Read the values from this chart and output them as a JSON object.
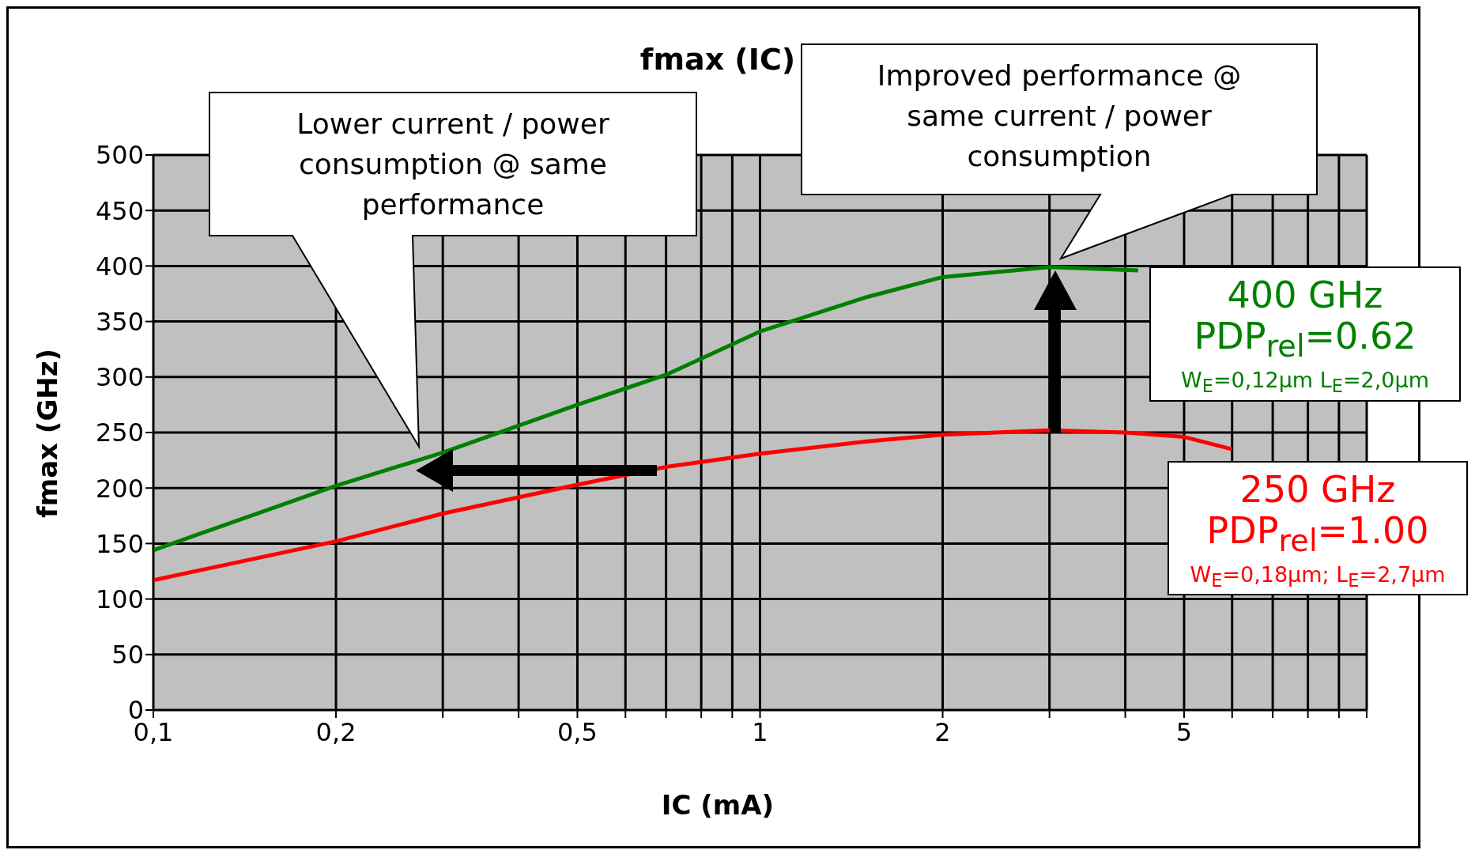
{
  "chart_data": {
    "type": "line",
    "title": "fmax (IC)",
    "xlabel": "IC (mA)",
    "ylabel": "fmax (GHz)",
    "log": "x",
    "xlim": [
      0.1,
      10
    ],
    "xticks": [
      {
        "value": 0.1,
        "label": "0,1"
      },
      {
        "value": 0.2,
        "label": "0,2"
      },
      {
        "value": 0.3,
        "label": null
      },
      {
        "value": 0.4,
        "label": null
      },
      {
        "value": 0.5,
        "label": "0,5"
      },
      {
        "value": 0.6,
        "label": null
      },
      {
        "value": 0.7,
        "label": null
      },
      {
        "value": 0.8,
        "label": null
      },
      {
        "value": 0.9,
        "label": null
      },
      {
        "value": 1,
        "label": "1"
      },
      {
        "value": 2,
        "label": "2"
      },
      {
        "value": 3,
        "label": null
      },
      {
        "value": 4,
        "label": null
      },
      {
        "value": 5,
        "label": "5"
      },
      {
        "value": 6,
        "label": null
      },
      {
        "value": 7,
        "label": null
      },
      {
        "value": 8,
        "label": null
      },
      {
        "value": 9,
        "label": null
      },
      {
        "value": 10,
        "label": null
      }
    ],
    "ylim": [
      0,
      500
    ],
    "yticks": [
      0,
      50,
      100,
      150,
      200,
      250,
      300,
      350,
      400,
      450,
      500
    ],
    "grid": true,
    "marker": "none",
    "line_style": "solid",
    "series": [
      {
        "color": "#008000",
        "x": [
          0.1,
          0.2,
          0.3,
          0.5,
          0.7,
          1,
          1.5,
          2,
          3,
          4.2
        ],
        "values": [
          144,
          202,
          232,
          275,
          302,
          341,
          372,
          390,
          399,
          396
        ]
      },
      {
        "color": "#ff0000",
        "x": [
          0.1,
          0.2,
          0.3,
          0.5,
          0.7,
          1,
          1.5,
          2,
          3,
          4,
          5,
          6
        ],
        "values": [
          117,
          152,
          177,
          203,
          219,
          231,
          242,
          248,
          252,
          250,
          246,
          235
        ]
      }
    ],
    "annotations": [
      "Lower current / power consumption @ same performance",
      "Improved performance @ same current / power consumption",
      "400 GHz",
      "PDP$_{rel}$=0.62",
      "W$_{E}$=0,12µm L$_{E}$=2,0µm",
      "250 GHz",
      "PDP$_{rel}$=1.00",
      "W$_{E}$=0,18µm; L$_{E}$=2,7µm"
    ]
  }
}
